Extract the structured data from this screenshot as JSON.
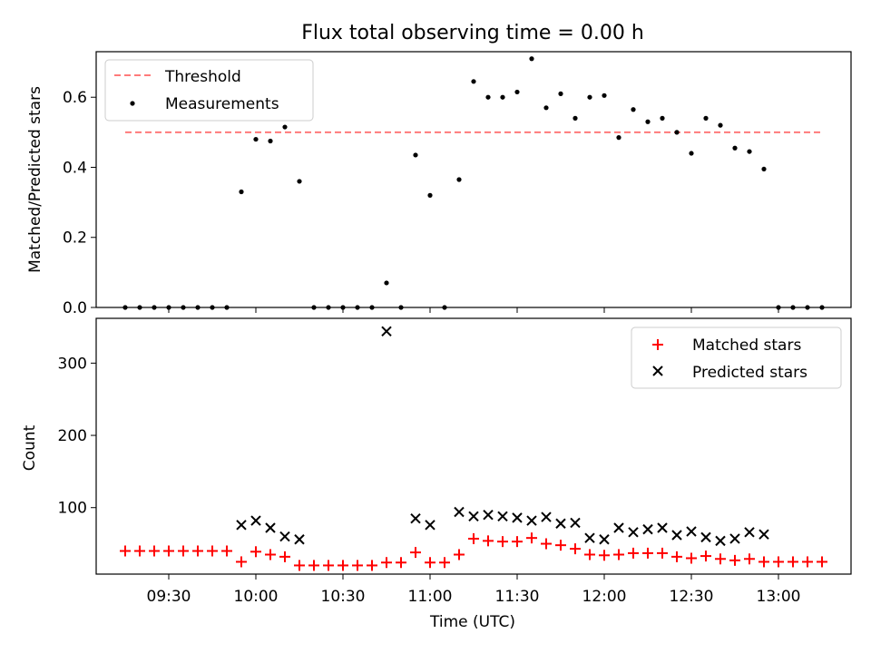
{
  "title": "Flux total observing time = 0.00 h",
  "colors": {
    "threshold": "#ff7a7a",
    "measurements": "#000000",
    "matched": "#ff0000",
    "predicted": "#000000"
  },
  "chart_data": [
    {
      "type": "scatter",
      "title": "Flux total observing time = 0.00 h",
      "ylabel": "Matched/Predicted stars",
      "xlabel": "",
      "ylim": [
        0,
        0.73
      ],
      "yticks": [
        "0.0",
        "0.2",
        "0.4",
        "0.6"
      ],
      "legend": {
        "position": "upper-left",
        "entries": [
          "Threshold",
          "Measurements"
        ]
      },
      "threshold": {
        "name": "Threshold",
        "value": 0.5,
        "x_range": [
          "09:15",
          "13:15"
        ]
      },
      "series": [
        {
          "name": "Measurements",
          "x": [
            "09:15",
            "09:20",
            "09:25",
            "09:30",
            "09:35",
            "09:40",
            "09:45",
            "09:50",
            "09:55",
            "10:00",
            "10:05",
            "10:10",
            "10:15",
            "10:20",
            "10:25",
            "10:30",
            "10:35",
            "10:40",
            "10:45",
            "10:50",
            "10:55",
            "11:00",
            "11:05",
            "11:10",
            "11:15",
            "11:20",
            "11:25",
            "11:30",
            "11:35",
            "11:40",
            "11:45",
            "11:50",
            "11:55",
            "12:00",
            "12:05",
            "12:10",
            "12:15",
            "12:20",
            "12:25",
            "12:30",
            "12:35",
            "12:40",
            "12:45",
            "12:50",
            "12:55",
            "13:00",
            "13:05",
            "13:10",
            "13:15"
          ],
          "y": [
            0,
            0,
            0,
            0,
            0,
            0,
            0,
            0,
            0.33,
            0.48,
            0.475,
            0.515,
            0.36,
            0,
            0,
            0,
            0,
            0,
            0.07,
            0,
            0.435,
            0.32,
            0,
            0.365,
            0.645,
            0.6,
            0.6,
            0.615,
            0.71,
            0.57,
            0.61,
            0.54,
            0.6,
            0.605,
            0.485,
            0.565,
            0.53,
            0.54,
            0.5,
            0.44,
            0.54,
            0.52,
            0.455,
            0.445,
            0.395,
            0,
            0,
            0,
            0
          ]
        }
      ]
    },
    {
      "type": "scatter",
      "xlabel": "Time (UTC)",
      "ylabel": "Count",
      "ylim": [
        8,
        362
      ],
      "yticks": [
        "100",
        "200",
        "300"
      ],
      "xticks": [
        "09:30",
        "10:00",
        "10:30",
        "11:00",
        "11:30",
        "12:00",
        "12:30",
        "13:00"
      ],
      "legend": {
        "position": "upper-right",
        "entries": [
          "Matched stars",
          "Predicted stars"
        ]
      },
      "series": [
        {
          "name": "Matched stars",
          "x": [
            "09:15",
            "09:20",
            "09:25",
            "09:30",
            "09:35",
            "09:40",
            "09:45",
            "09:50",
            "09:55",
            "10:00",
            "10:05",
            "10:10",
            "10:15",
            "10:20",
            "10:25",
            "10:30",
            "10:35",
            "10:40",
            "10:45",
            "10:50",
            "10:55",
            "11:00",
            "11:05",
            "11:10",
            "11:15",
            "11:20",
            "11:25",
            "11:30",
            "11:35",
            "11:40",
            "11:45",
            "11:50",
            "11:55",
            "12:00",
            "12:05",
            "12:10",
            "12:15",
            "12:20",
            "12:25",
            "12:30",
            "12:35",
            "12:40",
            "12:45",
            "12:50",
            "12:55",
            "13:00",
            "13:05",
            "13:10",
            "13:15"
          ],
          "y": [
            40,
            40,
            40,
            40,
            40,
            40,
            40,
            40,
            25,
            39,
            35,
            32,
            20,
            20,
            20,
            20,
            20,
            20,
            24,
            24,
            38,
            24,
            24,
            35,
            57,
            54,
            53,
            53,
            58,
            50,
            48,
            43,
            35,
            34,
            35,
            37,
            37,
            37,
            32,
            30,
            33,
            29,
            27,
            29,
            25,
            25,
            25,
            25,
            25
          ]
        },
        {
          "name": "Predicted stars",
          "x": [
            "09:55",
            "10:00",
            "10:05",
            "10:10",
            "10:15",
            "10:45",
            "10:55",
            "11:00",
            "11:10",
            "11:15",
            "11:20",
            "11:25",
            "11:30",
            "11:35",
            "11:40",
            "11:45",
            "11:50",
            "11:55",
            "12:00",
            "12:05",
            "12:10",
            "12:15",
            "12:20",
            "12:25",
            "12:30",
            "12:35",
            "12:40",
            "12:45",
            "12:50",
            "12:55"
          ],
          "y": [
            76,
            82,
            72,
            60,
            56,
            344,
            85,
            76,
            94,
            88,
            90,
            88,
            86,
            82,
            87,
            78,
            79,
            58,
            56,
            72,
            66,
            70,
            72,
            62,
            67,
            59,
            54,
            57,
            66,
            63
          ]
        }
      ]
    }
  ]
}
